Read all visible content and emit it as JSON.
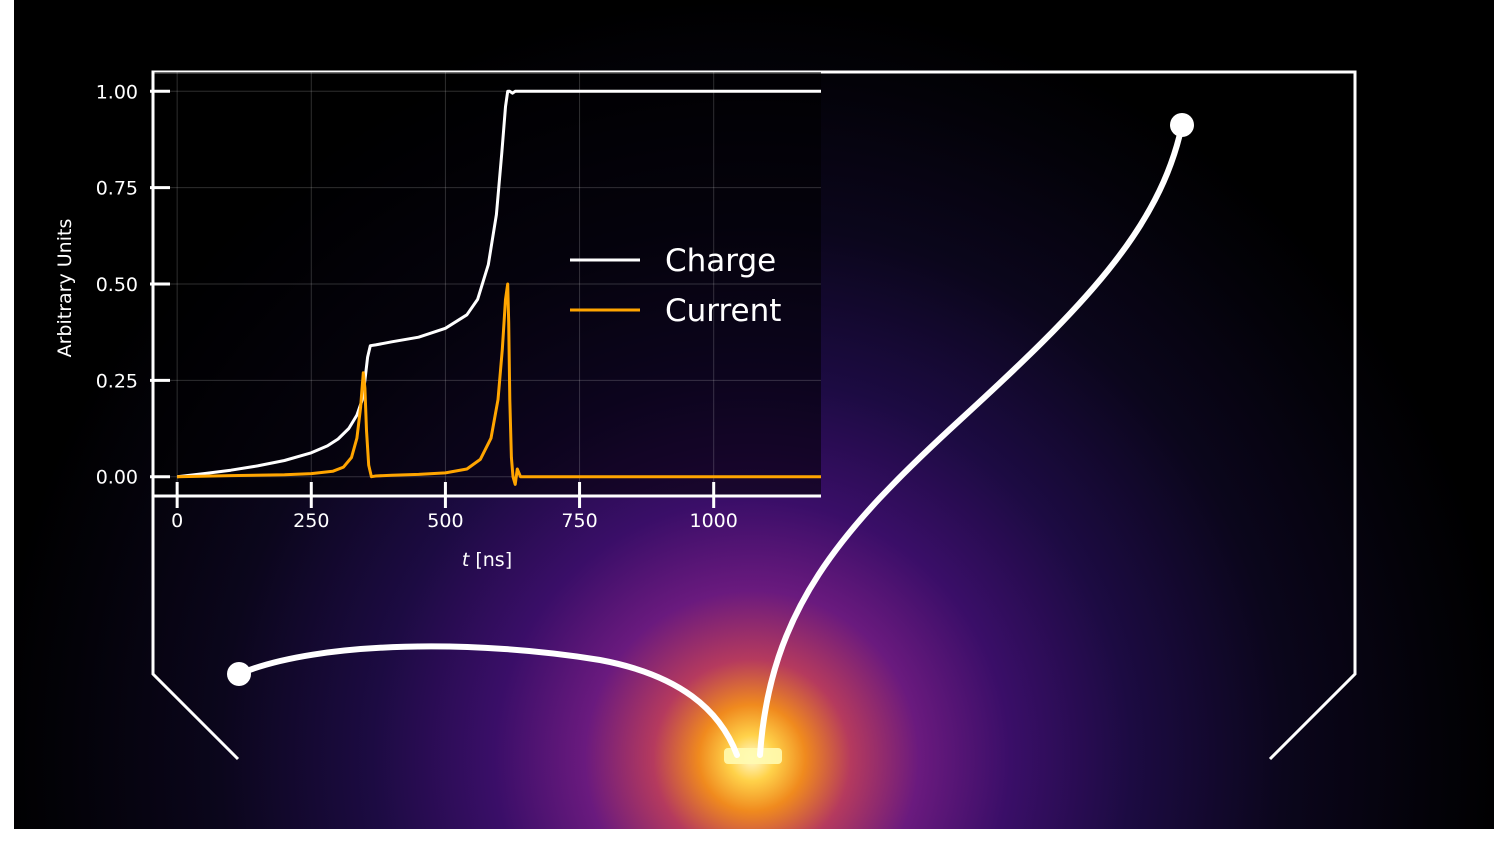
{
  "colors": {
    "background": "#000000",
    "glow_core": "#fff8a0",
    "glow_mid": "#f7a21b",
    "glow_outer": "#5b1a7a",
    "charge": "#ffffff",
    "current": "#ffa500",
    "outline": "#ffffff"
  },
  "chart_data": {
    "type": "line",
    "xlabel_italic": "t",
    "xlabel_unit": " [ns]",
    "ylabel": "Arbitrary Units",
    "xlim": [
      -45,
      1200
    ],
    "ylim": [
      -0.05,
      1.05
    ],
    "xticks": [
      0,
      250,
      500,
      750,
      1000
    ],
    "yticks": [
      0.0,
      0.25,
      0.5,
      0.75,
      1.0
    ],
    "xtick_labels": [
      "0",
      "250",
      "500",
      "750",
      "1000"
    ],
    "ytick_labels": [
      "0.00",
      "0.25",
      "0.50",
      "0.75",
      "1.00"
    ],
    "grid": true,
    "legend_position": "center-right",
    "series": [
      {
        "name": "Charge",
        "color": "#ffffff",
        "x": [
          0,
          50,
          100,
          150,
          200,
          250,
          280,
          300,
          320,
          335,
          345,
          350,
          355,
          360,
          370,
          400,
          450,
          500,
          540,
          560,
          580,
          595,
          605,
          612,
          616,
          620,
          625,
          630,
          640,
          700,
          800,
          900,
          1000,
          1100,
          1200
        ],
        "y": [
          0.0,
          0.008,
          0.017,
          0.028,
          0.042,
          0.062,
          0.08,
          0.098,
          0.125,
          0.16,
          0.2,
          0.25,
          0.31,
          0.34,
          0.342,
          0.35,
          0.362,
          0.385,
          0.42,
          0.46,
          0.55,
          0.68,
          0.84,
          0.96,
          1.0,
          1.0,
          0.995,
          1.0,
          1.0,
          1.0,
          1.0,
          1.0,
          1.0,
          1.0,
          1.0
        ]
      },
      {
        "name": "Current",
        "color": "#ffa500",
        "x": [
          0,
          100,
          200,
          250,
          290,
          310,
          325,
          335,
          342,
          347,
          350,
          353,
          357,
          362,
          370,
          400,
          450,
          500,
          540,
          565,
          585,
          598,
          606,
          612,
          616,
          618,
          620,
          623,
          626,
          630,
          634,
          640,
          700,
          800,
          900,
          1000,
          1100,
          1200
        ],
        "y": [
          0.0,
          0.003,
          0.005,
          0.008,
          0.014,
          0.025,
          0.05,
          0.1,
          0.18,
          0.27,
          0.23,
          0.12,
          0.03,
          0.0,
          0.002,
          0.004,
          0.006,
          0.01,
          0.02,
          0.045,
          0.1,
          0.2,
          0.33,
          0.46,
          0.5,
          0.4,
          0.2,
          0.05,
          0.0,
          -0.02,
          0.02,
          0.0,
          0.0,
          0.0,
          0.0,
          0.0,
          0.0,
          0.0
        ]
      }
    ]
  }
}
